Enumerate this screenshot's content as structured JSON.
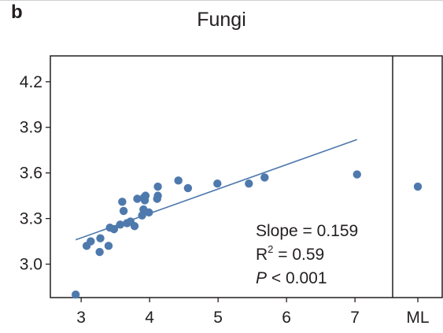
{
  "panel_label": "b",
  "chart_data": {
    "type": "scatter",
    "title": "Fungi",
    "xlabel": "",
    "ylabel": "",
    "xlim": [
      2.55,
      7.55
    ],
    "ylim": [
      2.78,
      4.37
    ],
    "x_ticks": [
      "3",
      "4",
      "5",
      "6",
      "7"
    ],
    "x_tick_values": [
      3,
      4,
      5,
      6,
      7
    ],
    "y_ticks": [
      "3.0",
      "3.3",
      "3.6",
      "3.9",
      "4.2"
    ],
    "y_tick_values": [
      3.0,
      3.3,
      3.6,
      3.9,
      4.2
    ],
    "extra_category": "ML",
    "extra_point": {
      "x": "ML",
      "y": 3.51
    },
    "grid": false,
    "point_color": "#4e79ad",
    "line_color": "#4e79ad",
    "points": [
      {
        "x": 2.92,
        "y": 2.8
      },
      {
        "x": 3.08,
        "y": 3.12
      },
      {
        "x": 3.14,
        "y": 3.15
      },
      {
        "x": 3.27,
        "y": 3.08
      },
      {
        "x": 3.28,
        "y": 3.17
      },
      {
        "x": 3.4,
        "y": 3.12
      },
      {
        "x": 3.42,
        "y": 3.24
      },
      {
        "x": 3.48,
        "y": 3.23
      },
      {
        "x": 3.57,
        "y": 3.26
      },
      {
        "x": 3.6,
        "y": 3.41
      },
      {
        "x": 3.62,
        "y": 3.35
      },
      {
        "x": 3.67,
        "y": 3.27
      },
      {
        "x": 3.72,
        "y": 3.28
      },
      {
        "x": 3.78,
        "y": 3.25
      },
      {
        "x": 3.82,
        "y": 3.43
      },
      {
        "x": 3.89,
        "y": 3.32
      },
      {
        "x": 3.91,
        "y": 3.36
      },
      {
        "x": 3.92,
        "y": 3.44
      },
      {
        "x": 3.93,
        "y": 3.42
      },
      {
        "x": 3.94,
        "y": 3.45
      },
      {
        "x": 3.99,
        "y": 3.34
      },
      {
        "x": 4.11,
        "y": 3.43
      },
      {
        "x": 4.12,
        "y": 3.45
      },
      {
        "x": 4.12,
        "y": 3.51
      },
      {
        "x": 4.42,
        "y": 3.55
      },
      {
        "x": 4.56,
        "y": 3.5
      },
      {
        "x": 4.99,
        "y": 3.53
      },
      {
        "x": 5.45,
        "y": 3.53
      },
      {
        "x": 5.68,
        "y": 3.57
      },
      {
        "x": 7.03,
        "y": 3.59
      }
    ],
    "fit_line": {
      "x": [
        2.92,
        7.03
      ],
      "y": [
        3.16,
        3.82
      ]
    },
    "annotations": {
      "slope": "Slope = 0.159",
      "r2_prefix": "R",
      "r2_sup": "2",
      "r2_suffix": " = 0.59",
      "p_italic": "P",
      "p_suffix": " < 0.001"
    }
  }
}
